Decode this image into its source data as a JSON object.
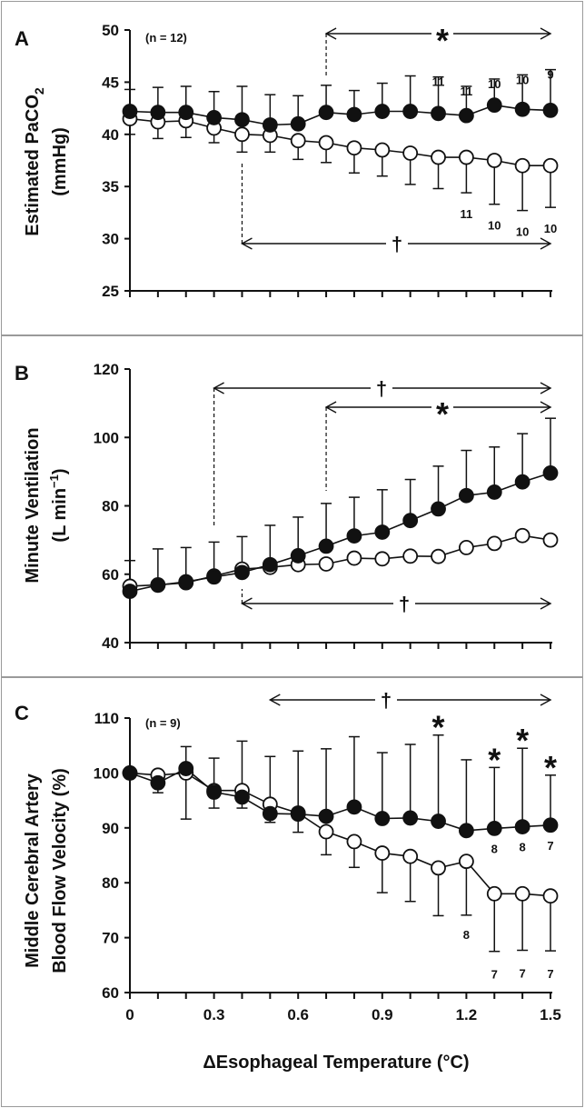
{
  "xlabel": "ΔEsophageal Temperature (°C)",
  "x_tick_labels": [
    "0",
    "0.3",
    "0.6",
    "0.9",
    "1.2",
    "1.5"
  ],
  "chart_data": [
    {
      "type": "line",
      "panel": "A",
      "ylabel_line1": "Estimated PaCO",
      "ylabel_sub": "2",
      "ylabel_line2": "(mmHg)",
      "ylim": [
        25,
        50
      ],
      "yticks": [
        "25",
        "30",
        "35",
        "40",
        "45",
        "50"
      ],
      "n_label": "(n = 12)",
      "x": [
        0,
        0.1,
        0.2,
        0.3,
        0.4,
        0.5,
        0.6,
        0.7,
        0.8,
        0.9,
        1.0,
        1.1,
        1.2,
        1.3,
        1.4,
        1.5
      ],
      "series": [
        {
          "marker": "filled",
          "values": [
            42.2,
            42.1,
            42.1,
            41.6,
            41.4,
            40.9,
            41.0,
            42.1,
            41.9,
            42.2,
            42.2,
            42.0,
            41.8,
            42.8,
            42.4,
            42.3
          ],
          "error": [
            2.1,
            2.4,
            2.5,
            2.5,
            3.2,
            2.9,
            2.7,
            2.6,
            2.3,
            2.7,
            3.4,
            3.5,
            2.8,
            2.5,
            3.3,
            3.9
          ]
        },
        {
          "marker": "open",
          "values": [
            41.5,
            41.2,
            41.3,
            40.6,
            40.0,
            39.9,
            39.4,
            39.2,
            38.7,
            38.5,
            38.2,
            37.8,
            37.8,
            37.5,
            37.0,
            37.0
          ],
          "error": [
            1.5,
            1.6,
            1.6,
            1.4,
            1.7,
            1.6,
            1.8,
            1.9,
            2.4,
            2.5,
            3.0,
            3.0,
            3.4,
            4.2,
            4.3,
            4.0
          ]
        }
      ],
      "n_annotations": [
        {
          "x": 1.1,
          "text": "11"
        },
        {
          "x": 1.2,
          "text": "11"
        },
        {
          "x": 1.3,
          "text": "10"
        },
        {
          "x": 1.4,
          "text": "10"
        },
        {
          "x": 1.5,
          "text": "9"
        },
        {
          "x": 1.2,
          "text": "11"
        },
        {
          "x": 1.3,
          "text": "10"
        },
        {
          "x": 1.4,
          "text": "10"
        },
        {
          "x": 1.5,
          "text": "10"
        }
      ],
      "significance": [
        {
          "symbol": "*",
          "from_x": 0.7,
          "to_x": 1.5
        },
        {
          "symbol": "†",
          "from_x": 0.4,
          "to_x": 1.5
        }
      ]
    },
    {
      "type": "line",
      "panel": "B",
      "ylabel_line1": "Minute Ventilation",
      "ylabel_line2": "(L min",
      "ylabel_sup": "−1",
      "ylabel_close": ")",
      "ylim": [
        40,
        120
      ],
      "yticks": [
        "40",
        "60",
        "80",
        "100",
        "120"
      ],
      "x": [
        0,
        0.1,
        0.2,
        0.3,
        0.4,
        0.5,
        0.6,
        0.7,
        0.8,
        0.9,
        1.0,
        1.1,
        1.2,
        1.3,
        1.4,
        1.5
      ],
      "series": [
        {
          "marker": "filled",
          "values": [
            55.0,
            56.8,
            57.8,
            59.2,
            60.5,
            62.8,
            65.4,
            68.2,
            71.2,
            72.3,
            75.7,
            79.1,
            83.0,
            84.0,
            87.0,
            89.6
          ],
          "error": [
            9.0,
            10.6,
            10.0,
            10.2,
            10.5,
            11.5,
            11.3,
            12.5,
            11.3,
            12.4,
            12.0,
            12.5,
            13.2,
            13.2,
            14.1,
            16.0
          ]
        },
        {
          "marker": "open",
          "values": [
            56.5,
            56.9,
            57.5,
            59.5,
            61.5,
            62.0,
            62.8,
            63.0,
            64.7,
            64.5,
            65.3,
            65.2,
            67.8,
            69.0,
            71.3,
            70.0
          ]
        }
      ],
      "significance": [
        {
          "symbol": "†",
          "from_x": 0.3,
          "to_x": 1.5
        },
        {
          "symbol": "*",
          "from_x": 0.7,
          "to_x": 1.5
        },
        {
          "symbol": "†",
          "from_x": 0.4,
          "to_x": 1.5
        }
      ]
    },
    {
      "type": "line",
      "panel": "C",
      "ylabel_line1": "Middle Cerebral Artery",
      "ylabel_line2": "Blood Flow Velocity (%)",
      "ylim": [
        60,
        110
      ],
      "yticks": [
        "60",
        "70",
        "80",
        "90",
        "100",
        "110"
      ],
      "n_label": "(n = 9)",
      "x": [
        0,
        0.1,
        0.2,
        0.3,
        0.4,
        0.5,
        0.6,
        0.7,
        0.8,
        0.9,
        1.0,
        1.1,
        1.2,
        1.3,
        1.4,
        1.5
      ],
      "series": [
        {
          "marker": "filled",
          "values": [
            100.0,
            98.2,
            100.8,
            96.5,
            95.6,
            92.6,
            92.5,
            92.1,
            93.8,
            91.7,
            91.8,
            91.2,
            89.5,
            89.9,
            90.2,
            90.5
          ],
          "error": [
            0,
            2.0,
            4.0,
            6.2,
            10.2,
            10.4,
            11.5,
            12.3,
            12.8,
            12.0,
            13.4,
            15.7,
            12.9,
            11.1,
            14.3,
            9.1
          ]
        },
        {
          "marker": "open",
          "values": [
            100.0,
            99.6,
            100.0,
            96.8,
            96.8,
            94.3,
            92.7,
            89.3,
            87.5,
            85.4,
            84.8,
            82.7,
            83.9,
            78.0,
            78.0,
            77.6
          ],
          "error": [
            0,
            3.2,
            8.4,
            3.2,
            3.2,
            3.3,
            3.5,
            4.2,
            4.7,
            7.2,
            8.2,
            8.7,
            9.8,
            10.5,
            10.3,
            10.0
          ]
        }
      ],
      "n_annotations": [
        {
          "x": 1.3,
          "text": "8"
        },
        {
          "x": 1.4,
          "text": "8"
        },
        {
          "x": 1.5,
          "text": "7"
        },
        {
          "x": 1.2,
          "text": "8"
        },
        {
          "x": 1.3,
          "text": "7"
        },
        {
          "x": 1.4,
          "text": "7"
        },
        {
          "x": 1.5,
          "text": "7"
        }
      ],
      "significance": [
        {
          "symbol": "†",
          "from_x": 0.5,
          "to_x": 1.5
        },
        {
          "symbol": "*",
          "at_x": [
            1.1,
            1.3,
            1.4,
            1.5
          ]
        },
        {
          "symbol": "†",
          "from_x": 0.5,
          "to_x": 1.5
        }
      ]
    }
  ]
}
